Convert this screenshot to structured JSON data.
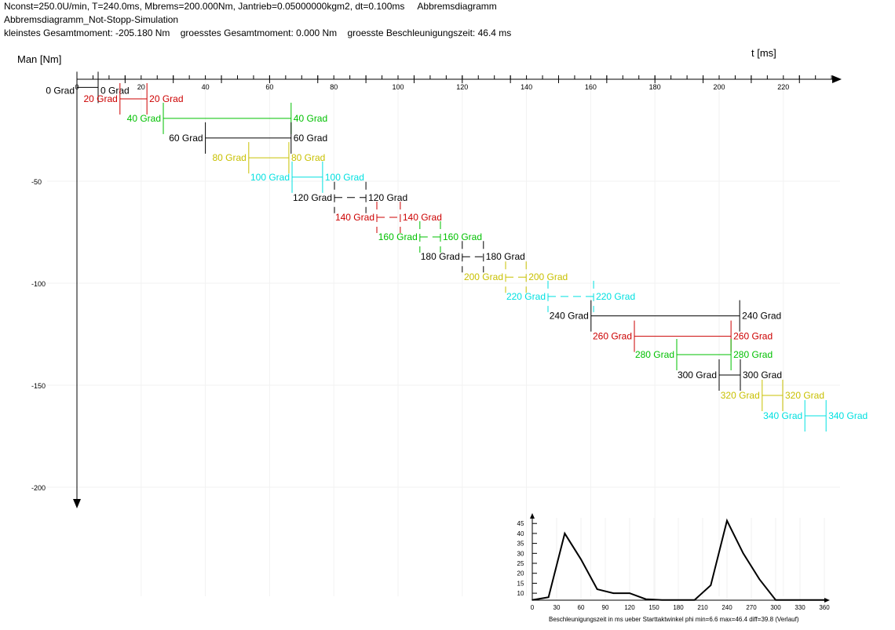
{
  "header": {
    "line1": "Nconst=250.0U/min, T=240.0ms, Mbrems=200.000Nm, Jantrieb=0.05000000kgm2, dt=0.100ms     Abbremsdiagramm",
    "line2": "Abbremsdiagramm_Not-Stopp-Simulation",
    "line3": "kleinstes Gesamtmoment: -205.180 Nm    groesstes Gesamtmoment: 0.000 Nm    groesste Beschleunigungszeit: 46.4 ms"
  },
  "chart_data": [
    {
      "type": "bar",
      "ylabel": "Man [Nm]",
      "xlabel": "t [ms]",
      "xlim": [
        0,
        235
      ],
      "ylim": [
        -205,
        0
      ],
      "x_ticks": [
        0,
        20,
        40,
        60,
        80,
        100,
        120,
        140,
        160,
        180,
        200,
        220
      ],
      "y_ticks": [
        -50,
        -100,
        -150,
        -200
      ],
      "colors": {
        "black": "#000000",
        "red": "#cc0000",
        "green": "#00c000",
        "yellow": "#c8c000",
        "cyan": "#00e0e0"
      },
      "intervals": [
        {
          "label": "0 Grad",
          "start": 0,
          "end": 6.6,
          "moment": -4,
          "color": "black"
        },
        {
          "label": "20 Grad",
          "start": 13.4,
          "end": 21.8,
          "moment": -9.6,
          "color": "red"
        },
        {
          "label": "40 Grad",
          "start": 26.9,
          "end": 66.7,
          "moment": -19.2,
          "color": "green"
        },
        {
          "label": "60 Grad",
          "start": 40.0,
          "end": 66.7,
          "moment": -28.8,
          "color": "black"
        },
        {
          "label": "80 Grad",
          "start": 53.5,
          "end": 66.0,
          "moment": -38.5,
          "color": "yellow"
        },
        {
          "label": "100 Grad",
          "start": 67.0,
          "end": 76.5,
          "moment": -48.0,
          "color": "cyan"
        },
        {
          "label": "120 Grad",
          "start": 80.2,
          "end": 90.0,
          "moment": -58.0,
          "color": "black",
          "dashed": true
        },
        {
          "label": "140 Grad",
          "start": 93.4,
          "end": 100.7,
          "moment": -67.7,
          "color": "red",
          "dashed": true
        },
        {
          "label": "160 Grad",
          "start": 106.8,
          "end": 113.2,
          "moment": -77.3,
          "color": "green",
          "dashed": true
        },
        {
          "label": "180 Grad",
          "start": 120.0,
          "end": 126.6,
          "moment": -87.0,
          "color": "black",
          "dashed": true
        },
        {
          "label": "200 Grad",
          "start": 133.5,
          "end": 139.9,
          "moment": -97.0,
          "color": "yellow",
          "dashed": true
        },
        {
          "label": "220 Grad",
          "start": 146.7,
          "end": 160.9,
          "moment": -106.5,
          "color": "cyan",
          "dashed": true
        },
        {
          "label": "240 Grad",
          "start": 160.1,
          "end": 206.4,
          "moment": -116.0,
          "color": "black"
        },
        {
          "label": "260 Grad",
          "start": 173.6,
          "end": 203.7,
          "moment": -126.0,
          "color": "red"
        },
        {
          "label": "280 Grad",
          "start": 186.8,
          "end": 203.7,
          "moment": -135.0,
          "color": "green"
        },
        {
          "label": "300 Grad",
          "start": 200.0,
          "end": 206.6,
          "moment": -145.0,
          "color": "black"
        },
        {
          "label": "320 Grad",
          "start": 213.4,
          "end": 219.8,
          "moment": -155.0,
          "color": "yellow"
        },
        {
          "label": "340 Grad",
          "start": 226.7,
          "end": 233.3,
          "moment": -165.0,
          "color": "cyan"
        }
      ]
    },
    {
      "type": "line",
      "xlabel": "Beschleunigungszeit in ms ueber Starttaktwinkel phi  min=6.6  max=46.4  diff=39.8 (Verlauf)",
      "xlim": [
        0,
        360
      ],
      "ylim": [
        6.5,
        47
      ],
      "x_ticks": [
        0,
        30,
        60,
        90,
        120,
        150,
        180,
        210,
        240,
        270,
        300,
        330,
        360
      ],
      "y_ticks": [
        10,
        15,
        20,
        25,
        30,
        35,
        40,
        45
      ],
      "x": [
        0,
        20,
        40,
        60,
        80,
        100,
        120,
        140,
        160,
        180,
        200,
        220,
        240,
        260,
        280,
        300,
        320,
        340,
        360
      ],
      "y": [
        6.6,
        8,
        40,
        27,
        12,
        10,
        10,
        7,
        6.6,
        6.6,
        6.6,
        14,
        46.4,
        30,
        17,
        6.6,
        6.6,
        6.6,
        6.6
      ]
    }
  ]
}
